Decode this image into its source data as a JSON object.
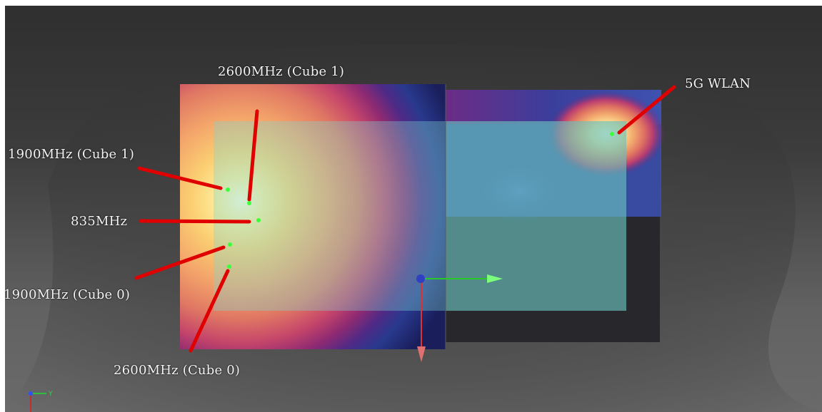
{
  "labels": {
    "lbl_2600_c1": "2600MHz (Cube 1)",
    "lbl_1900_c1": "1900MHz (Cube 1)",
    "lbl_835": "835MHz",
    "lbl_1900_c0": "1900MHz (Cube 0)",
    "lbl_2600_c0": "2600MHz (Cube 0)",
    "lbl_5g": "5G WLAN"
  },
  "axis_triad": {
    "y_label": "Y"
  },
  "colors": {
    "annotation_line": "#e00000",
    "hotspot_marker": "#3cff3c",
    "axis_y": "#28c828",
    "axis_z": "#e03030",
    "origin": "#3040c0"
  },
  "icons": [
    "axis-triad-icon",
    "origin-icon",
    "y-axis-arrow-icon",
    "z-axis-arrow-icon"
  ]
}
